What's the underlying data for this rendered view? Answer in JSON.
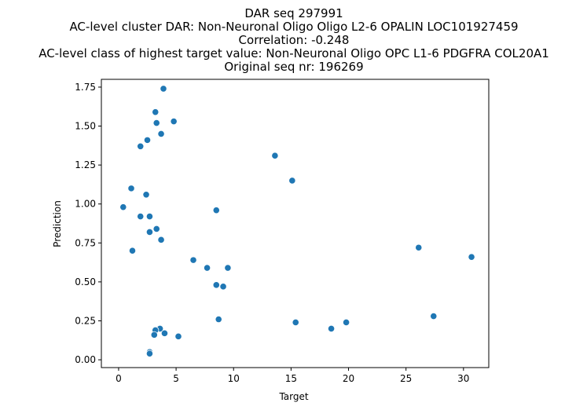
{
  "chart_data": {
    "type": "scatter",
    "title_lines": [
      "DAR seq 297991",
      "AC-level cluster DAR: Non-Neuronal Oligo Oligo L2-6 OPALIN LOC101927459",
      "Correlation: -0.248",
      "AC-level class of highest target value: Non-Neuronal Oligo OPC L1-6 PDGFRA COL20A1",
      "Original seq nr: 196269"
    ],
    "xlabel": "Target",
    "ylabel": "Prediction",
    "xlim": [
      -1.5,
      32.2
    ],
    "ylim": [
      -0.05,
      1.8
    ],
    "xticks": [
      0,
      5,
      10,
      15,
      20,
      25,
      30
    ],
    "xtick_labels": [
      "0",
      "5",
      "10",
      "15",
      "20",
      "25",
      "30"
    ],
    "yticks": [
      0.0,
      0.25,
      0.5,
      0.75,
      1.0,
      1.25,
      1.5,
      1.75
    ],
    "ytick_labels": [
      "0.00",
      "0.25",
      "0.50",
      "0.75",
      "1.00",
      "1.25",
      "1.50",
      "1.75"
    ],
    "grid": false,
    "marker_color": "#1f77b4",
    "points": [
      {
        "x": 3.9,
        "y": 1.74
      },
      {
        "x": 3.2,
        "y": 1.59
      },
      {
        "x": 4.8,
        "y": 1.53
      },
      {
        "x": 3.3,
        "y": 1.52
      },
      {
        "x": 3.7,
        "y": 1.45
      },
      {
        "x": 2.5,
        "y": 1.41
      },
      {
        "x": 1.9,
        "y": 1.37
      },
      {
        "x": 13.6,
        "y": 1.31
      },
      {
        "x": 15.1,
        "y": 1.15
      },
      {
        "x": 1.1,
        "y": 1.1
      },
      {
        "x": 2.4,
        "y": 1.06
      },
      {
        "x": 0.4,
        "y": 0.98
      },
      {
        "x": 8.5,
        "y": 0.96
      },
      {
        "x": 1.9,
        "y": 0.92
      },
      {
        "x": 2.7,
        "y": 0.92
      },
      {
        "x": 3.3,
        "y": 0.84
      },
      {
        "x": 2.7,
        "y": 0.82
      },
      {
        "x": 3.7,
        "y": 0.77
      },
      {
        "x": 26.1,
        "y": 0.72
      },
      {
        "x": 1.2,
        "y": 0.7
      },
      {
        "x": 30.7,
        "y": 0.66
      },
      {
        "x": 6.5,
        "y": 0.64
      },
      {
        "x": 7.7,
        "y": 0.59
      },
      {
        "x": 9.5,
        "y": 0.59
      },
      {
        "x": 8.5,
        "y": 0.48
      },
      {
        "x": 9.1,
        "y": 0.47
      },
      {
        "x": 27.4,
        "y": 0.28
      },
      {
        "x": 8.7,
        "y": 0.26
      },
      {
        "x": 15.4,
        "y": 0.24
      },
      {
        "x": 19.8,
        "y": 0.24
      },
      {
        "x": 18.5,
        "y": 0.2
      },
      {
        "x": 3.6,
        "y": 0.2
      },
      {
        "x": 3.2,
        "y": 0.19
      },
      {
        "x": 4.0,
        "y": 0.17
      },
      {
        "x": 3.1,
        "y": 0.16
      },
      {
        "x": 5.2,
        "y": 0.15
      },
      {
        "x": 2.7,
        "y": 0.05
      },
      {
        "x": 2.7,
        "y": 0.04
      }
    ]
  }
}
